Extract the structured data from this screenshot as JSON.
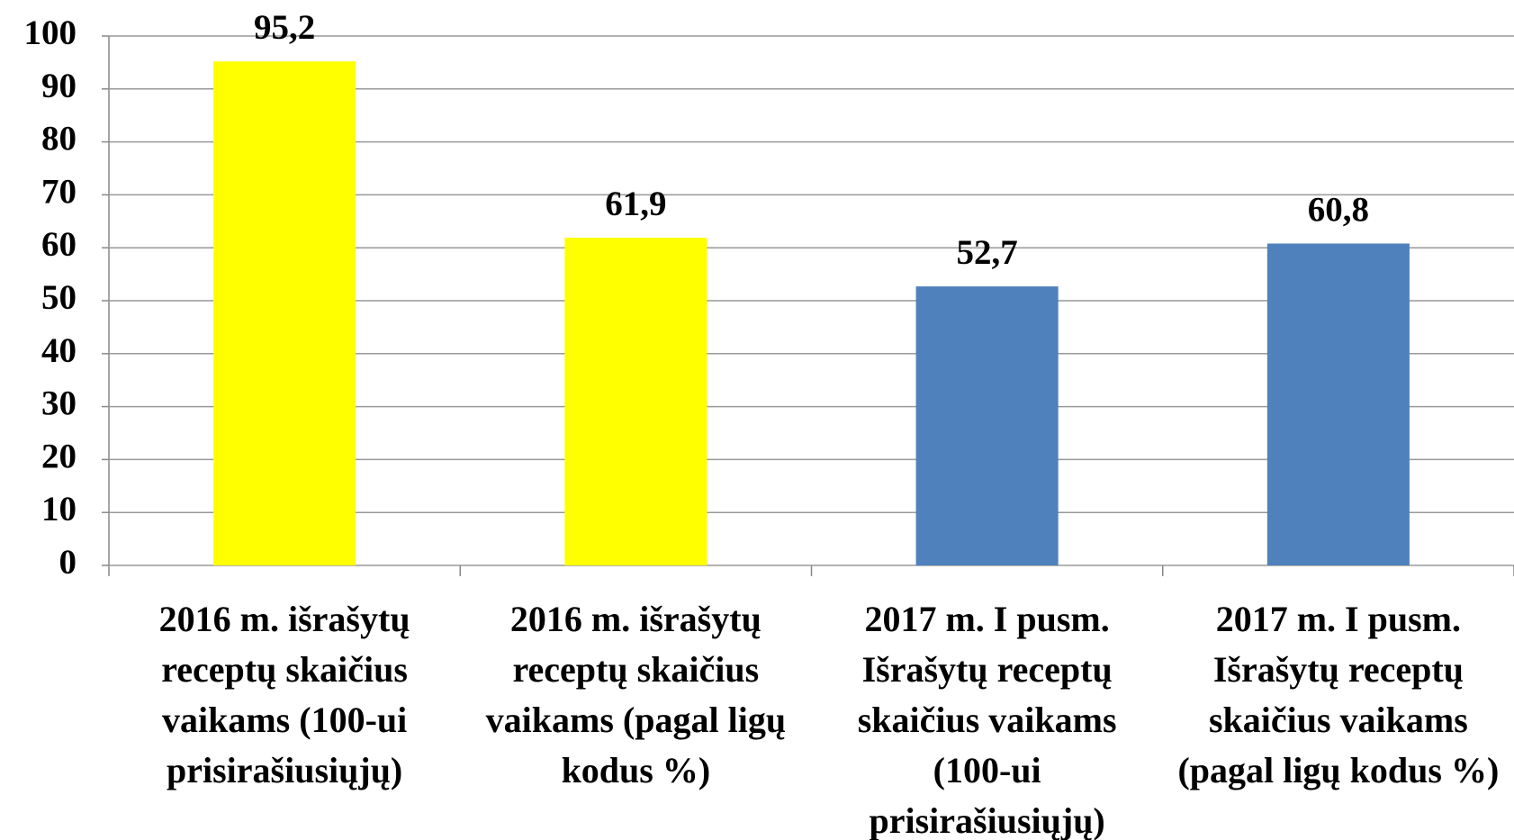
{
  "chart_data": {
    "type": "bar",
    "categories": [
      "2016 m. išrašytų receptų skaičius vaikams (100-ui prisirašiusiųjų)",
      "2016 m. išrašytų receptų skaičius vaikams (pagal ligų kodus %)",
      "2017 m. I pusm. Išrašytų receptų skaičius vaikams (100-ui prisirašiusiųjų)",
      "2017 m. I pusm. Išrašytų receptų skaičius vaikams (pagal ligų kodus %)"
    ],
    "values": [
      95.2,
      61.9,
      52.7,
      60.8
    ],
    "value_labels": [
      "95,2",
      "61,9",
      "52,7",
      "60,8"
    ],
    "colors": [
      "#ffff00",
      "#ffff00",
      "#4f81bd",
      "#4f81bd"
    ],
    "ylim": [
      0,
      100
    ],
    "yticks": [
      0,
      10,
      20,
      30,
      40,
      50,
      60,
      70,
      80,
      90,
      100
    ],
    "grid": true
  }
}
